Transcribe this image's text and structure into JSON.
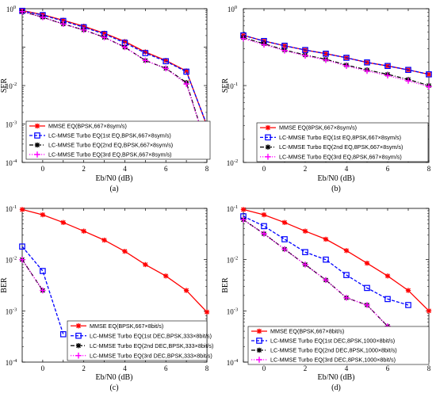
{
  "chart_data": [
    {
      "type": "line",
      "panel_label": "(a)",
      "xlabel": "Eb/N0 (dB)",
      "ylabel": "SER",
      "xlim": [
        -1,
        8
      ],
      "ylim": [
        0.0001,
        1
      ],
      "yscale": "log",
      "grid": false,
      "legend_placement": "bottom-left",
      "x_ticks": [
        0,
        2,
        4,
        6,
        8
      ],
      "y_ticks": [
        {
          "value": 1,
          "base": "10",
          "exp": "0"
        },
        {
          "value": 0.01,
          "base": "10",
          "exp": "-2"
        },
        {
          "value": 0.001,
          "base": "10",
          "exp": "-3"
        },
        {
          "value": 0.0001,
          "base": "10",
          "exp": "-4"
        }
      ],
      "series": [
        {
          "name": "MMSE EQ(BPSK,667×8sym/s)",
          "color": "#ff0000",
          "marker": "star",
          "dash": "solid",
          "x": [
            -1,
            0,
            1,
            2,
            3,
            4,
            5,
            6,
            7,
            8
          ],
          "y": [
            0.9,
            0.7,
            0.5,
            0.35,
            0.23,
            0.14,
            0.075,
            0.045,
            0.024,
            0.0009
          ]
        },
        {
          "name": "LC-MMSE Turbo EQ(1st EQ,BPSK,667×8sym/s)",
          "color": "#0000ff",
          "marker": "square",
          "dash": "dashed",
          "x": [
            -1,
            0,
            1,
            2,
            3,
            4,
            5,
            6,
            7,
            8
          ],
          "y": [
            0.88,
            0.68,
            0.48,
            0.33,
            0.22,
            0.13,
            0.07,
            0.043,
            0.023,
            0.00095
          ]
        },
        {
          "name": "LC-MMSE Turbo EQ(2nd EQ,BPSK,667×8sym/s)",
          "color": "#000000",
          "marker": "star",
          "dash": "dashdot",
          "x": [
            -1,
            0,
            1,
            2,
            3,
            4,
            5,
            6,
            7,
            8
          ],
          "y": [
            0.85,
            0.6,
            0.4,
            0.28,
            0.18,
            0.1,
            0.045,
            0.028,
            0.012,
            0.00025
          ]
        },
        {
          "name": "LC-MMSE Turbo EQ(3rd EQ,BPSK,667×8sym/s)",
          "color": "#ff00ff",
          "marker": "plus",
          "dotted": true,
          "dash": "dotted",
          "x": [
            -1,
            0,
            1,
            2,
            3,
            4,
            5,
            6,
            7,
            8
          ],
          "y": [
            0.84,
            0.6,
            0.4,
            0.28,
            0.18,
            0.1,
            0.045,
            0.028,
            0.011,
            0.00025
          ]
        }
      ]
    },
    {
      "type": "line",
      "panel_label": "(b)",
      "xlabel": "Eb/N0 (dB)",
      "ylabel": "SER",
      "xlim": [
        -1,
        8
      ],
      "ylim": [
        0.01,
        1
      ],
      "yscale": "log",
      "grid": false,
      "legend_placement": "bottom-left",
      "x_ticks": [
        0,
        2,
        4,
        6,
        8
      ],
      "y_ticks": [
        {
          "value": 1,
          "base": "10",
          "exp": "0"
        },
        {
          "value": 0.1,
          "base": "10",
          "exp": "-1"
        },
        {
          "value": 0.01,
          "base": "10",
          "exp": "-2"
        }
      ],
      "series": [
        {
          "name": "MMSE EQ(8PSK,667×8sym/s)",
          "color": "#ff0000",
          "marker": "star",
          "dash": "solid",
          "x": [
            -1,
            0,
            1,
            2,
            3,
            4,
            5,
            6,
            7,
            8
          ],
          "y": [
            0.45,
            0.38,
            0.33,
            0.29,
            0.26,
            0.23,
            0.2,
            0.18,
            0.16,
            0.14
          ]
        },
        {
          "name": "LC-MMSE Turbo EQ(1st EQ,8PSK,667×8sym/s)",
          "color": "#0000ff",
          "marker": "square",
          "dash": "dashed",
          "x": [
            -1,
            0,
            1,
            2,
            3,
            4,
            5,
            6,
            7,
            8
          ],
          "y": [
            0.45,
            0.38,
            0.33,
            0.29,
            0.26,
            0.23,
            0.2,
            0.18,
            0.16,
            0.14
          ]
        },
        {
          "name": "LC-MMSE Turbo EQ(2nd EQ,8PSK,667×8sym/s)",
          "color": "#000000",
          "marker": "star",
          "dash": "dashdot",
          "x": [
            -1,
            0,
            1,
            2,
            3,
            4,
            5,
            6,
            7,
            8
          ],
          "y": [
            0.42,
            0.35,
            0.29,
            0.25,
            0.22,
            0.185,
            0.16,
            0.14,
            0.12,
            0.1
          ]
        },
        {
          "name": "LC-MMSE Turbo EQ(3rd EQ,8PSK,667×8sym/s)",
          "color": "#ff00ff",
          "marker": "plus",
          "dash": "dotted",
          "x": [
            -1,
            0,
            1,
            2,
            3,
            4,
            5,
            6,
            7,
            8
          ],
          "y": [
            0.41,
            0.34,
            0.285,
            0.245,
            0.215,
            0.18,
            0.155,
            0.135,
            0.115,
            0.097
          ]
        }
      ]
    },
    {
      "type": "line",
      "panel_label": "(c)",
      "xlabel": "Eb/N0 (dB)",
      "ylabel": "BER",
      "xlim": [
        -1,
        8
      ],
      "ylim": [
        0.0001,
        0.1
      ],
      "yscale": "log",
      "grid": false,
      "legend_placement": "bottom-right",
      "x_ticks": [
        0,
        2,
        4,
        6,
        8
      ],
      "y_ticks": [
        {
          "value": 0.1,
          "base": "10",
          "exp": "-1"
        },
        {
          "value": 0.01,
          "base": "10",
          "exp": "-2"
        },
        {
          "value": 0.001,
          "base": "10",
          "exp": "-3"
        },
        {
          "value": 0.0001,
          "base": "10",
          "exp": "-4"
        }
      ],
      "series": [
        {
          "name": "MMSE EQ(BPSK,667×8bit/s)",
          "color": "#ff0000",
          "marker": "star",
          "dash": "solid",
          "x": [
            -1,
            0,
            1,
            2,
            3,
            4,
            5,
            6,
            7,
            8
          ],
          "y": [
            0.095,
            0.075,
            0.053,
            0.036,
            0.024,
            0.0145,
            0.008,
            0.0048,
            0.0025,
            0.00095
          ]
        },
        {
          "name": "LC-MMSE Turbo EQ(1st DEC,BPSK,333×8bit/s)",
          "color": "#0000ff",
          "marker": "square",
          "dash": "dashed",
          "x": [
            -1,
            0,
            1
          ],
          "y": [
            0.018,
            0.006,
            0.00035
          ]
        },
        {
          "name": "LC-MMSE Turbo EQ(2nd DEC,BPSK,333×8bit/s)",
          "color": "#000000",
          "marker": "star",
          "dash": "dashdot",
          "x": [
            -1,
            0
          ],
          "y": [
            0.01,
            0.0025
          ]
        },
        {
          "name": "LC-MMSE Turbo EQ(3rd DEC,BPSK,333×8bit/s)",
          "color": "#ff00ff",
          "marker": "plus",
          "dash": "dotted",
          "x": [
            -1,
            0
          ],
          "y": [
            0.01,
            0.0025
          ]
        }
      ]
    },
    {
      "type": "line",
      "panel_label": "(d)",
      "xlabel": "Eb/N0 (dB)",
      "ylabel": "BER",
      "xlim": [
        -1,
        8
      ],
      "ylim": [
        0.0001,
        0.1
      ],
      "yscale": "log",
      "grid": false,
      "legend_placement": "bottom-right",
      "x_ticks": [
        0,
        2,
        4,
        6,
        8
      ],
      "y_ticks": [
        {
          "value": 0.1,
          "base": "10",
          "exp": "-1"
        },
        {
          "value": 0.01,
          "base": "10",
          "exp": "-2"
        },
        {
          "value": 0.001,
          "base": "10",
          "exp": "-3"
        },
        {
          "value": 0.0001,
          "base": "10",
          "exp": "-4"
        }
      ],
      "series": [
        {
          "name": "MMSE EQ(BPSK,667×8bit/s)",
          "color": "#ff0000",
          "marker": "star",
          "dash": "solid",
          "x": [
            -1,
            0,
            1,
            2,
            3,
            4,
            5,
            6,
            7,
            8
          ],
          "y": [
            0.095,
            0.075,
            0.053,
            0.036,
            0.025,
            0.015,
            0.0085,
            0.0048,
            0.0025,
            0.001
          ]
        },
        {
          "name": "LC-MMSE Turbo EQ(1st DEC,8PSK,1000×8bit/s)",
          "color": "#0000ff",
          "marker": "square",
          "dash": "dashed",
          "x": [
            -1,
            0,
            1,
            2,
            3,
            4,
            5,
            6,
            7
          ],
          "y": [
            0.07,
            0.045,
            0.025,
            0.014,
            0.01,
            0.005,
            0.0028,
            0.0017,
            0.0013
          ]
        },
        {
          "name": "LC-MMSE Turbo EQ(2nd DEC,8PSK,1000×8bit/s)",
          "color": "#000000",
          "marker": "star",
          "dash": "dashdot",
          "x": [
            -1,
            0,
            1,
            2,
            3,
            4,
            5,
            6
          ],
          "y": [
            0.06,
            0.032,
            0.016,
            0.008,
            0.004,
            0.0018,
            0.0013,
            0.0005
          ]
        },
        {
          "name": "LC-MMSE Turbo EQ(3rd DEC,8PSK,1000×8bit/s)",
          "color": "#ff00ff",
          "marker": "plus",
          "dash": "dotted",
          "x": [
            -1,
            0,
            1,
            2,
            3,
            4,
            5,
            6
          ],
          "y": [
            0.06,
            0.032,
            0.016,
            0.008,
            0.004,
            0.0018,
            0.0013,
            0.0005
          ]
        }
      ]
    }
  ]
}
